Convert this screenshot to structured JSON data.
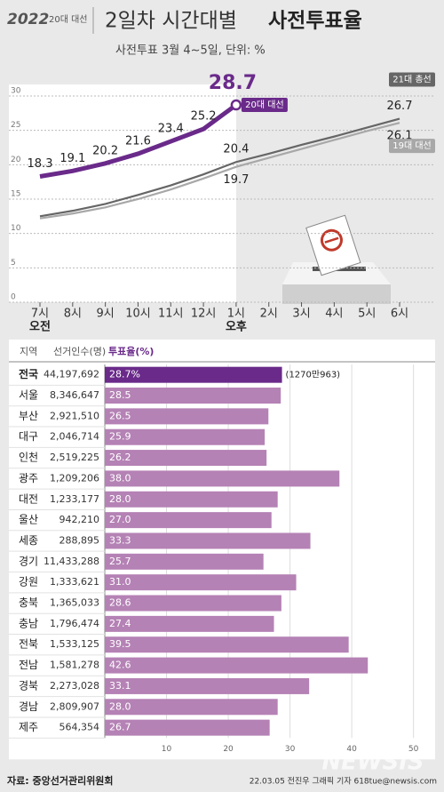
{
  "header": {
    "logo": "2022",
    "badge": "20대 대선",
    "title_light": "2일차 시간대별",
    "title_bold": "사전투표율",
    "subtitle": "사전투표 3월 4~5일, 단위: %"
  },
  "chart_data": [
    {
      "type": "line",
      "categories": [
        "7시",
        "8시",
        "9시",
        "10시",
        "11시",
        "12시",
        "1시",
        "2시",
        "3시",
        "4시",
        "5시",
        "6시"
      ],
      "period_labels": [
        "오전",
        null,
        null,
        null,
        null,
        null,
        "오후",
        null,
        null,
        null,
        null,
        null
      ],
      "ylim": [
        0,
        30
      ],
      "yticks": [
        0,
        5,
        10,
        15,
        20,
        25,
        30
      ],
      "grid": true,
      "series": [
        {
          "name": "21대 총선",
          "color": "#666666",
          "values": [
            12.5,
            13.3,
            14.3,
            15.6,
            17.0,
            18.6,
            20.4,
            21.6,
            22.9,
            24.1,
            25.4,
            26.7
          ],
          "value_labels": [
            null,
            null,
            null,
            null,
            null,
            null,
            "20.4",
            null,
            null,
            null,
            null,
            "26.7"
          ]
        },
        {
          "name": "19대 대선",
          "color": "#a8a8a8",
          "values": [
            12.2,
            12.9,
            13.8,
            15.0,
            16.4,
            18.0,
            19.7,
            21.0,
            22.3,
            23.6,
            24.9,
            26.1
          ],
          "value_labels": [
            null,
            null,
            null,
            null,
            null,
            null,
            "19.7",
            null,
            null,
            null,
            null,
            "26.1"
          ]
        },
        {
          "name": "20대 대선",
          "color": "#6a2a8a",
          "values": [
            18.3,
            19.1,
            20.2,
            21.6,
            23.4,
            25.2,
            28.7,
            null,
            null,
            null,
            null,
            null
          ],
          "value_labels": [
            "18.3",
            "19.1",
            "20.2",
            "21.6",
            "23.4",
            "25.2",
            "28.7",
            null,
            null,
            null,
            null,
            null
          ]
        }
      ]
    },
    {
      "type": "bar",
      "orientation": "horizontal",
      "headers": [
        "지역",
        "선거인수(명)",
        "투표율(%)"
      ],
      "categories": [
        "전국",
        "서울",
        "부산",
        "대구",
        "인천",
        "광주",
        "대전",
        "울산",
        "세종",
        "경기",
        "강원",
        "충북",
        "충남",
        "전북",
        "전남",
        "경북",
        "경남",
        "제주"
      ],
      "electorate": [
        "44,197,692",
        "8,346,647",
        "2,921,510",
        "2,046,714",
        "2,519,225",
        "1,209,206",
        "1,233,177",
        "942,210",
        "288,895",
        "11,433,288",
        "1,333,621",
        "1,365,033",
        "1,796,474",
        "1,533,125",
        "1,581,278",
        "2,273,028",
        "2,809,907",
        "564,354"
      ],
      "values": [
        28.7,
        28.5,
        26.5,
        25.9,
        26.2,
        38.0,
        28.0,
        27.0,
        33.3,
        25.7,
        31.0,
        28.6,
        27.4,
        39.5,
        42.6,
        33.1,
        28.0,
        26.7
      ],
      "value_labels": [
        "28.7%",
        "28.5",
        "26.5",
        "25.9",
        "26.2",
        "38.0",
        "28.0",
        "27.0",
        "33.3",
        "25.7",
        "31.0",
        "28.6",
        "27.4",
        "39.5",
        "42.6",
        "33.1",
        "28.0",
        "26.7"
      ],
      "annotation": "(1270만963)",
      "colors": [
        "#6a2a8a",
        "#b582b5"
      ],
      "xlim": [
        0,
        53.5
      ],
      "xticks": [
        10,
        20,
        30,
        40,
        50
      ],
      "grid": true
    }
  ],
  "footer": {
    "source": "자료: 중앙선거관리위원회",
    "credit": "22.03.05 전진우 그래픽 기자 618tue@newsis.com",
    "watermark": "NEWSIS"
  }
}
